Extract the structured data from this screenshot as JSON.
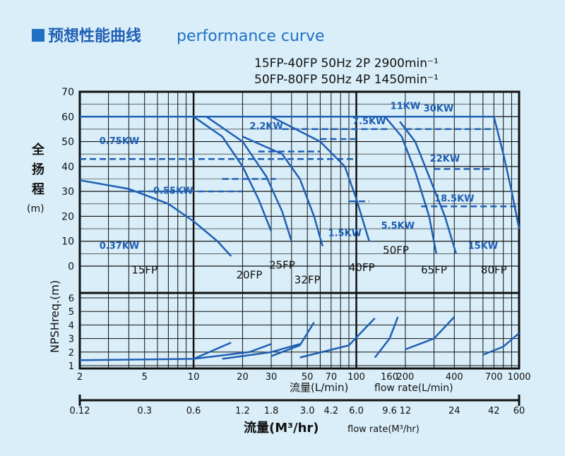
{
  "header": {
    "title_cn": "预想性能曲线",
    "title_en": "performance curve",
    "spec_line1": "15FP-40FP  50Hz  2P  2900min⁻¹",
    "spec_line2": "50FP-80FP  50Hz  4P 1450min⁻¹"
  },
  "colors": {
    "background": "#d9eef8",
    "curve": "#1f5fb4",
    "grid": "#111111",
    "accent_square": "#1f6fc4"
  },
  "chart_data": {
    "type": "line",
    "x_axis_top": {
      "scale": "log",
      "unit_label_cn": "流量(L/min)",
      "unit_label_en": "flow rate(L/min)",
      "ticks": [
        "2",
        "5",
        "10",
        "20",
        "30",
        "50",
        "70",
        "100",
        "160",
        "200",
        "400",
        "700",
        "1000"
      ],
      "range": [
        2,
        1000
      ]
    },
    "x_axis_bottom": {
      "scale": "log",
      "unit_label_cn": "流量(M³/hr)",
      "unit_label_en": "flow rate(M³/hr)",
      "ticks": [
        "0.12",
        "0.3",
        "0.6",
        "1.2",
        "1.8",
        "3.0",
        "4.2",
        "6.0",
        "9.6",
        "12",
        "24",
        "42",
        "60"
      ]
    },
    "y_axis_head": {
      "label_cn": "全扬程",
      "unit": "(m)",
      "ticks": [
        "0",
        "10",
        "20",
        "30",
        "40",
        "50",
        "60",
        "70"
      ],
      "range": [
        0,
        70
      ]
    },
    "y_axis_npsh": {
      "label": "NPSHreq.(m)",
      "ticks": [
        "1",
        "2",
        "3",
        "4",
        "5",
        "6"
      ],
      "range": [
        1,
        6
      ]
    },
    "model_labels": [
      "15FP",
      "20FP",
      "25FP",
      "32FP",
      "40FP",
      "50FP",
      "65FP",
      "80FP"
    ],
    "power_labels": [
      "0.37KW",
      "0.55KW",
      "0.75KW",
      "1.5KW",
      "2.2KW",
      "7.5KW",
      "11KW",
      "30KW",
      "22KW",
      "18.5KW",
      "15KW",
      "5.5KW"
    ],
    "series": [
      {
        "name": "15FP",
        "x": [
          2,
          4,
          7,
          10,
          14,
          17
        ],
        "y": [
          34.5,
          31,
          25,
          18,
          10,
          4
        ]
      },
      {
        "name": "20FP",
        "x": [
          10,
          15,
          20,
          25,
          30
        ],
        "y": [
          60,
          52,
          40,
          27,
          14
        ]
      },
      {
        "name": "25FP",
        "x": [
          12,
          20,
          28,
          35,
          40
        ],
        "y": [
          60,
          50,
          36,
          22,
          10
        ]
      },
      {
        "name": "32FP",
        "x": [
          20,
          35,
          45,
          55,
          62
        ],
        "y": [
          52,
          45,
          35,
          20,
          8
        ]
      },
      {
        "name": "40FP",
        "x": [
          30,
          60,
          85,
          100,
          120
        ],
        "y": [
          60,
          50,
          40,
          27,
          10
        ]
      },
      {
        "name": "50FP",
        "x": [
          150,
          190,
          230,
          280,
          310
        ],
        "y": [
          60,
          52,
          38,
          20,
          5
        ]
      },
      {
        "name": "65FP",
        "x": [
          185,
          230,
          280,
          350,
          410
        ],
        "y": [
          58,
          50,
          36,
          20,
          5
        ]
      },
      {
        "name": "80FP",
        "x": [
          700,
          800,
          900,
          1000
        ],
        "y": [
          60,
          45,
          30,
          15
        ]
      }
    ],
    "npsh_series": [
      {
        "name": "15FP",
        "x": [
          2,
          10,
          17
        ],
        "y": [
          1.4,
          1.5,
          2.7
        ]
      },
      {
        "name": "20FP",
        "x": [
          10,
          22,
          30
        ],
        "y": [
          1.5,
          2.0,
          2.6
        ]
      },
      {
        "name": "25FP",
        "x": [
          15,
          30,
          45
        ],
        "y": [
          1.5,
          2.0,
          2.6
        ]
      },
      {
        "name": "32FP",
        "x": [
          30,
          45,
          55
        ],
        "y": [
          1.7,
          2.5,
          4.2
        ]
      },
      {
        "name": "40FP",
        "x": [
          45,
          90,
          130
        ],
        "y": [
          1.6,
          2.5,
          4.5
        ]
      },
      {
        "name": "50FP",
        "x": [
          130,
          160,
          180
        ],
        "y": [
          1.6,
          3.0,
          4.6
        ]
      },
      {
        "name": "65FP",
        "x": [
          200,
          300,
          400
        ],
        "y": [
          2.2,
          3.0,
          4.6
        ]
      },
      {
        "name": "80FP",
        "x": [
          600,
          800,
          1000
        ],
        "y": [
          1.8,
          2.4,
          3.4
        ]
      }
    ],
    "grid": true
  }
}
